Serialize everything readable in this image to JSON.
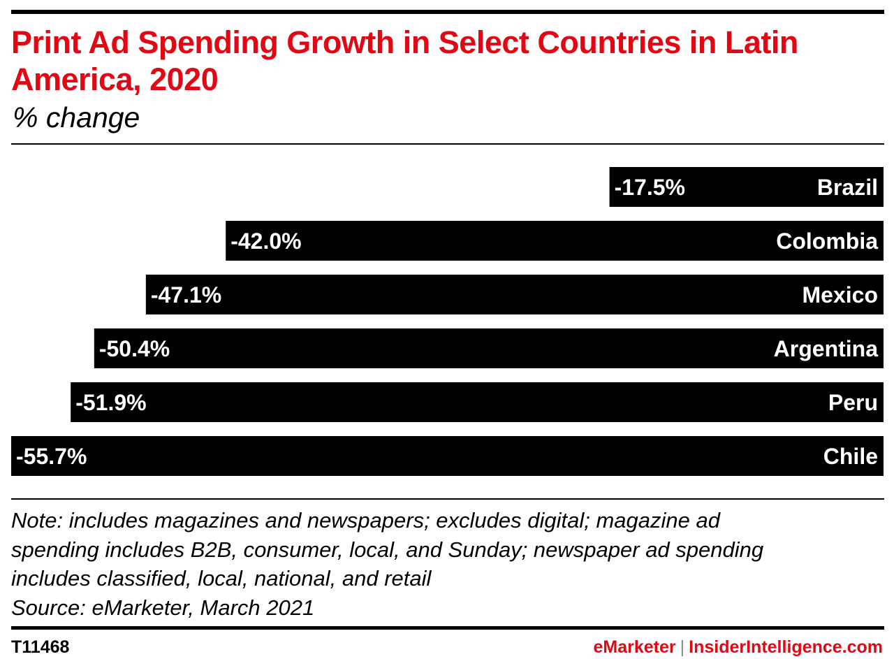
{
  "chart_data": {
    "type": "bar",
    "orientation": "horizontal",
    "title": "Print Ad Spending Growth in Select Countries in Latin America, 2020",
    "subtitle": "% change",
    "categories": [
      "Brazil",
      "Colombia",
      "Mexico",
      "Argentina",
      "Peru",
      "Chile"
    ],
    "values": [
      -17.5,
      -42.0,
      -47.1,
      -50.4,
      -51.9,
      -55.7
    ],
    "value_labels": [
      "-17.5%",
      "-42.0%",
      "-47.1%",
      "-50.4%",
      "-51.9%",
      "-55.7%"
    ],
    "xlim": [
      -55.7,
      0
    ],
    "bar_color": "#000000",
    "label_color": "#ffffff",
    "grid": false
  },
  "note": {
    "lines": [
      "Note: includes magazines and newspapers; excludes digital; magazine ad",
      "spending includes B2B, consumer, local, and Sunday; newspaper ad spending",
      "includes classified, local, national, and retail"
    ],
    "source": "Source: eMarketer, March 2021"
  },
  "footer": {
    "id": "T11468",
    "brand_left": "eMarketer",
    "separator": "|",
    "brand_right": "InsiderIntelligence.com"
  },
  "colors": {
    "accent": "#e30613",
    "text": "#000000"
  }
}
